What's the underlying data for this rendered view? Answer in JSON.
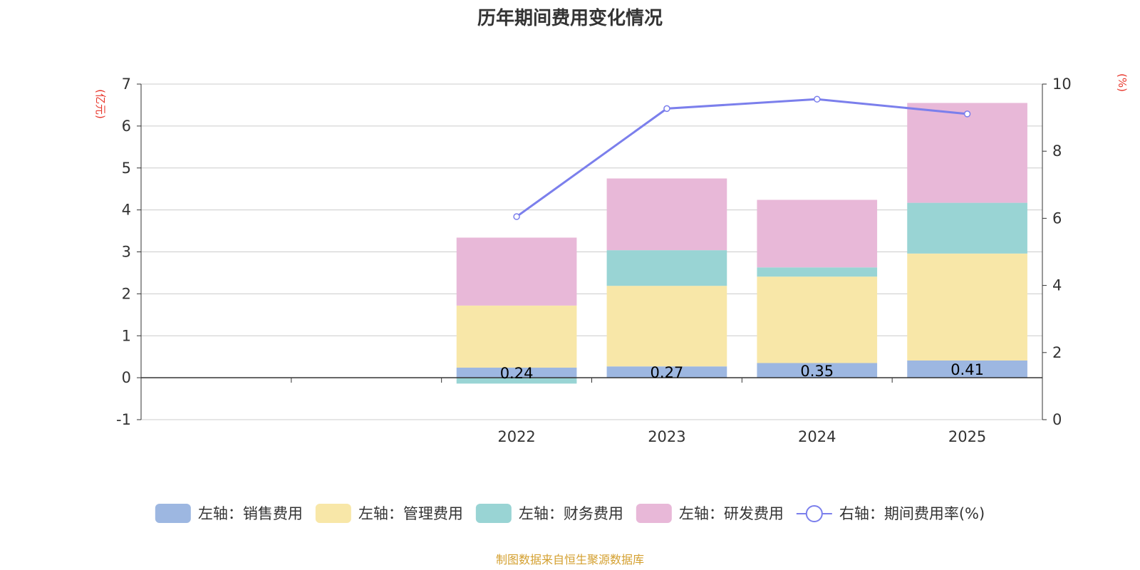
{
  "chart_data": {
    "type": "bar",
    "stacked": true,
    "title": "历年期间费用变化情况",
    "left_axis_unit": "(亿元)",
    "right_axis_unit": "(%)",
    "categories": [
      "",
      "",
      "2022",
      "2023",
      "2024",
      "2025"
    ],
    "ylim_left": [
      -1,
      7
    ],
    "ylim_right": [
      0,
      10
    ],
    "left_ticks": [
      -1,
      0,
      1,
      2,
      3,
      4,
      5,
      6,
      7
    ],
    "right_ticks": [
      0,
      2,
      4,
      6,
      8,
      10
    ],
    "series": [
      {
        "name": "左轴：销售费用",
        "color": "#9db7e1",
        "values": [
          null,
          null,
          0.24,
          0.27,
          0.35,
          0.41
        ],
        "labels": [
          "",
          "",
          "0.24",
          "0.27",
          "0.35",
          "0.41"
        ]
      },
      {
        "name": "左轴：管理费用",
        "color": "#f8e7a8",
        "values": [
          null,
          null,
          1.48,
          1.92,
          2.06,
          2.55
        ]
      },
      {
        "name": "左轴：财务费用",
        "color": "#99d4d4",
        "values": [
          null,
          null,
          -0.14,
          0.85,
          0.22,
          1.21
        ]
      },
      {
        "name": "左轴：研发费用",
        "color": "#e8b8d8",
        "values": [
          null,
          null,
          1.62,
          1.71,
          1.61,
          2.38
        ]
      }
    ],
    "line": {
      "name": "右轴：期间费用率(%)",
      "color": "#7b7fec",
      "values": [
        null,
        null,
        6.05,
        9.27,
        9.55,
        9.11
      ]
    }
  },
  "source": "制图数据来自恒生聚源数据库",
  "colors": {
    "axis_unit": "#e8372c",
    "source": "#d4a030",
    "grid": "#cccccc",
    "axis": "#333333"
  }
}
